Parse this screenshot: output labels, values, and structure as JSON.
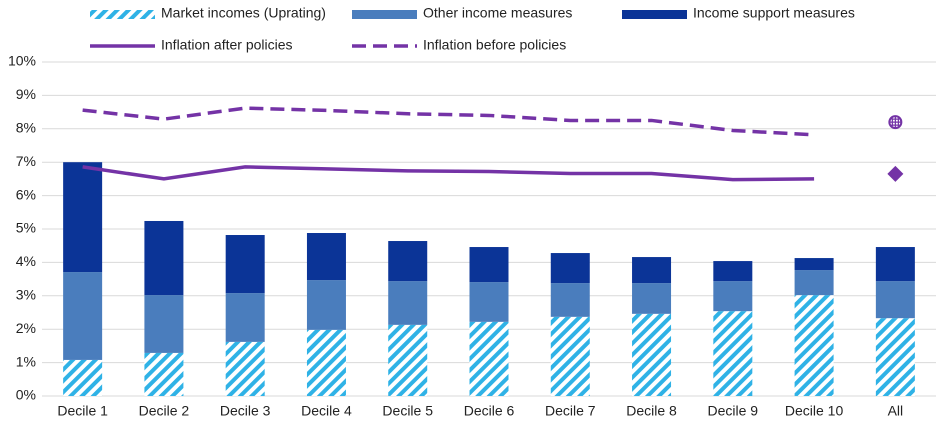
{
  "chart_data": {
    "type": "bar",
    "stacked": true,
    "categories": [
      "Decile  1",
      "Decile  2",
      "Decile  3",
      "Decile  4",
      "Decile  5",
      "Decile  6",
      "Decile  7",
      "Decile  8",
      "Decile  9",
      "Decile  10",
      "All"
    ],
    "series": [
      {
        "name": "Market incomes (Uprating)",
        "type": "bar",
        "pattern": "diagonal",
        "color": "#2fb2e6",
        "values": [
          1.08,
          1.29,
          1.62,
          1.98,
          2.13,
          2.22,
          2.37,
          2.46,
          2.54,
          3.02,
          2.33
        ]
      },
      {
        "name": "Other income measures",
        "type": "bar",
        "color": "#4a7dbd",
        "values": [
          2.63,
          1.73,
          1.46,
          1.49,
          1.31,
          1.19,
          1.01,
          0.92,
          0.9,
          0.75,
          1.11
        ]
      },
      {
        "name": "Income support measures",
        "type": "bar",
        "color": "#0b3497",
        "values": [
          3.29,
          2.22,
          1.74,
          1.41,
          1.2,
          1.05,
          0.9,
          0.78,
          0.6,
          0.36,
          1.02
        ]
      },
      {
        "name": "Inflation after policies",
        "type": "line",
        "dash": false,
        "color": "#7433a6",
        "markers_only": [
          "All"
        ],
        "marker": "diamond",
        "values": [
          6.86,
          6.5,
          6.86,
          6.8,
          6.74,
          6.72,
          6.66,
          6.66,
          6.48,
          6.5,
          6.65
        ]
      },
      {
        "name": "Inflation before policies",
        "type": "line",
        "dash": true,
        "color": "#7433a6",
        "markers_only": [
          "All"
        ],
        "marker": "circle-cross",
        "values": [
          8.56,
          8.29,
          8.62,
          8.55,
          8.45,
          8.4,
          8.25,
          8.25,
          7.95,
          7.82,
          8.2
        ]
      }
    ],
    "ylim": [
      0,
      10
    ],
    "yticks": [
      {
        "value": 0,
        "label": "0%"
      },
      {
        "value": 1,
        "label": "1%"
      },
      {
        "value": 2,
        "label": "2%"
      },
      {
        "value": 3,
        "label": "3%"
      },
      {
        "value": 4,
        "label": "4%"
      },
      {
        "value": 5,
        "label": "5%"
      },
      {
        "value": 6,
        "label": "6%"
      },
      {
        "value": 7,
        "label": "7%"
      },
      {
        "value": 8,
        "label": "8%"
      },
      {
        "value": 9,
        "label": "9%"
      },
      {
        "value": 10,
        "label": "10%"
      }
    ],
    "grid": true,
    "legend": "top"
  }
}
